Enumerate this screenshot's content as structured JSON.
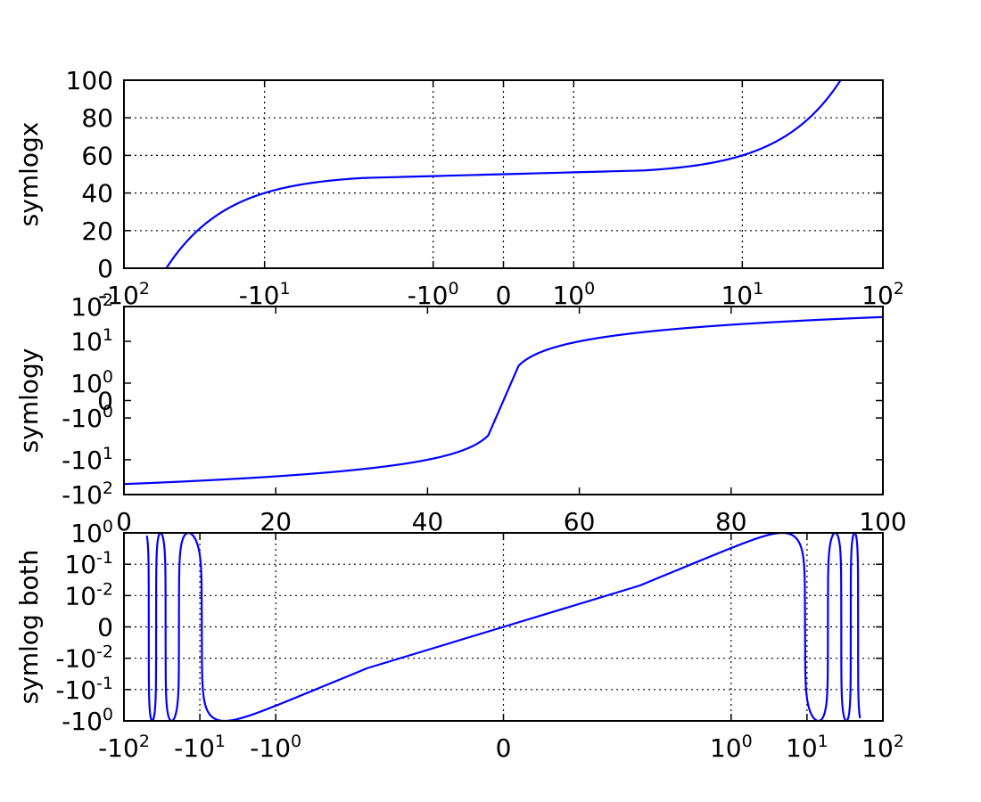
{
  "chart_data": [
    {
      "type": "line",
      "ylabel": "symlogx",
      "xscale": "symlog",
      "yscale": "linear",
      "xlim": [
        -100,
        100
      ],
      "ylim": [
        0,
        100
      ],
      "grid": true,
      "x_ticks": [
        {
          "value": -100,
          "base": "-10",
          "exp": "2"
        },
        {
          "value": -10,
          "base": "-10",
          "exp": "1"
        },
        {
          "value": -1,
          "base": "-10",
          "exp": "0"
        },
        {
          "value": 0,
          "base": "0",
          "exp": ""
        },
        {
          "value": 1,
          "base": "10",
          "exp": "0"
        },
        {
          "value": 10,
          "base": "10",
          "exp": "1"
        },
        {
          "value": 100,
          "base": "10",
          "exp": "2"
        }
      ],
      "y_ticks": [
        {
          "value": 0,
          "label": "0"
        },
        {
          "value": 20,
          "label": "20"
        },
        {
          "value": 40,
          "label": "40"
        },
        {
          "value": 60,
          "label": "60"
        },
        {
          "value": 80,
          "label": "80"
        },
        {
          "value": 100,
          "label": "100"
        }
      ],
      "series": [
        {
          "color": "#0000ff",
          "function": "y = x + 50",
          "x_range": [
            -50,
            50
          ]
        }
      ]
    },
    {
      "type": "line",
      "ylabel": "symlogy",
      "xscale": "linear",
      "yscale": "symlog",
      "xlim": [
        0,
        100
      ],
      "ylim": [
        -100,
        100
      ],
      "grid": false,
      "x_ticks": [
        {
          "value": 0,
          "label": "0"
        },
        {
          "value": 20,
          "label": "20"
        },
        {
          "value": 40,
          "label": "40"
        },
        {
          "value": 60,
          "label": "60"
        },
        {
          "value": 80,
          "label": "80"
        },
        {
          "value": 100,
          "label": "100"
        }
      ],
      "y_ticks": [
        {
          "value": -100,
          "base": "-10",
          "exp": "2"
        },
        {
          "value": -10,
          "base": "-10",
          "exp": "1"
        },
        {
          "value": -1,
          "base": "-10",
          "exp": "0"
        },
        {
          "value": 0,
          "base": "0",
          "exp": ""
        },
        {
          "value": 1,
          "base": "10",
          "exp": "0"
        },
        {
          "value": 10,
          "base": "10",
          "exp": "1"
        },
        {
          "value": 100,
          "base": "10",
          "exp": "2"
        }
      ],
      "series": [
        {
          "color": "#0000ff",
          "function": "y = x - 50",
          "x_range": [
            0,
            100
          ]
        }
      ]
    },
    {
      "type": "line",
      "ylabel": "symlog both",
      "xscale": "symlog",
      "yscale": "symlog",
      "xlim": [
        -100,
        100
      ],
      "ylim": [
        -1,
        1
      ],
      "grid": true,
      "x_ticks": [
        {
          "value": -100,
          "base": "-10",
          "exp": "2"
        },
        {
          "value": -10,
          "base": "-10",
          "exp": "1"
        },
        {
          "value": -1,
          "base": "-10",
          "exp": "0"
        },
        {
          "value": 0,
          "base": "0",
          "exp": ""
        },
        {
          "value": 1,
          "base": "10",
          "exp": "0"
        },
        {
          "value": 10,
          "base": "10",
          "exp": "1"
        },
        {
          "value": 100,
          "base": "10",
          "exp": "2"
        }
      ],
      "y_ticks": [
        {
          "value": -1,
          "base": "-10",
          "exp": "0"
        },
        {
          "value": -0.1,
          "base": "-10",
          "exp": "-1"
        },
        {
          "value": -0.01,
          "base": "-10",
          "exp": "-2"
        },
        {
          "value": 0,
          "base": "0",
          "exp": ""
        },
        {
          "value": 0.01,
          "base": "10",
          "exp": "-2"
        },
        {
          "value": 0.1,
          "base": "10",
          "exp": "-1"
        },
        {
          "value": 1,
          "base": "10",
          "exp": "0"
        }
      ],
      "series": [
        {
          "color": "#0000ff",
          "function": "y = sin(x / 3)",
          "x_range": [
            -50,
            50
          ]
        }
      ]
    }
  ]
}
